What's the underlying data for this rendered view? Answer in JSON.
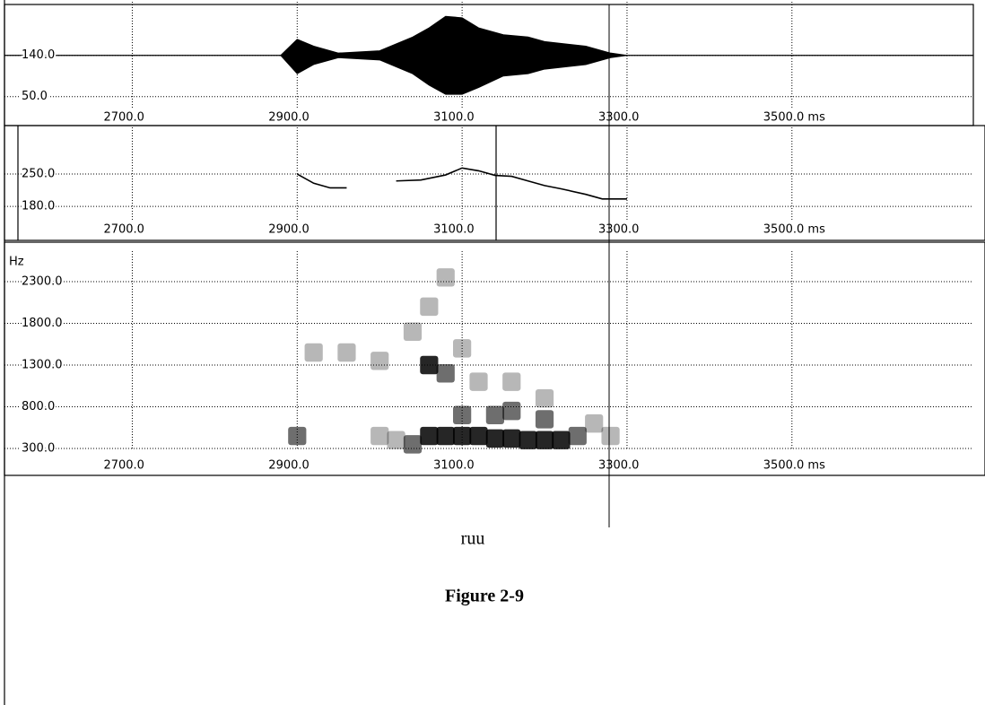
{
  "chart_data": [
    {
      "type": "waveform",
      "x": [
        2880,
        2900,
        2920,
        2950,
        3000,
        3040,
        3060,
        3080,
        3100,
        3120,
        3150,
        3180,
        3200,
        3250,
        3280,
        3300
      ],
      "upper": [
        140,
        175,
        160,
        145,
        150,
        180,
        200,
        225,
        222,
        200,
        185,
        180,
        170,
        160,
        145,
        140
      ],
      "lower": [
        140,
        100,
        120,
        135,
        130,
        100,
        75,
        55,
        55,
        70,
        95,
        100,
        110,
        120,
        135,
        140
      ],
      "color": "#000000",
      "xlim": [
        2545,
        3720
      ],
      "ylim": [
        26,
        251
      ],
      "xticks": [
        {
          "value": 2700,
          "label": "2700.0"
        },
        {
          "value": 2900,
          "label": "2900.0"
        },
        {
          "value": 3100,
          "label": "3100.0"
        },
        {
          "value": 3300,
          "label": "3300.0"
        },
        {
          "value": 3500,
          "label": "3500.0 ms"
        }
      ],
      "yticks": [
        {
          "value": 140,
          "label": "140.0"
        },
        {
          "value": 50,
          "label": "50.0"
        }
      ],
      "grid": true
    },
    {
      "type": "line",
      "x": [
        2900,
        2920,
        2940,
        2960,
        2990,
        3020,
        3050,
        3080,
        3100,
        3120,
        3140,
        3160,
        3180,
        3200,
        3220,
        3250,
        3270,
        3300
      ],
      "values": [
        250,
        230,
        220,
        220,
        null,
        235,
        237,
        248,
        263,
        257,
        247,
        245,
        235,
        225,
        218,
        206,
        196,
        196
      ],
      "color": "#000000",
      "xlim": [
        2545,
        3720
      ],
      "ylim": [
        151,
        351
      ],
      "xticks": [
        {
          "value": 2700,
          "label": "2700.0"
        },
        {
          "value": 2900,
          "label": "2900.0"
        },
        {
          "value": 3100,
          "label": "3100.0"
        },
        {
          "value": 3300,
          "label": "3300.0"
        },
        {
          "value": 3500,
          "label": "3500.0 ms"
        }
      ],
      "yticks": [
        {
          "value": 250,
          "label": "250.0"
        },
        {
          "value": 180,
          "label": "180.0"
        }
      ],
      "grid": true
    },
    {
      "type": "spectrogram",
      "y_label": "Hz",
      "x": [
        3060,
        3080,
        3100,
        3120,
        3140,
        3160,
        3180,
        3200,
        3220,
        3060,
        3080,
        2900,
        3040,
        3240,
        3140,
        3160,
        3200,
        3260,
        2920,
        2960,
        3000,
        3040,
        3060,
        3100,
        3120,
        3160,
        3200,
        3020,
        3000,
        3280,
        3100,
        3080
      ],
      "y": [
        450,
        450,
        450,
        450,
        420,
        420,
        400,
        400,
        400,
        1300,
        1200,
        450,
        350,
        450,
        700,
        750,
        650,
        600,
        1450,
        1450,
        1350,
        1700,
        2000,
        1500,
        1100,
        1100,
        900,
        400,
        450,
        450,
        700,
        2350
      ],
      "values": [
        3,
        3,
        3,
        3,
        3,
        3,
        3,
        3,
        3,
        3,
        2,
        2,
        2,
        2,
        2,
        2,
        2,
        1,
        1,
        1,
        1,
        1,
        1,
        1,
        1,
        1,
        1,
        1,
        1,
        1,
        2,
        1
      ],
      "color": "#000000",
      "xlim": [
        2545,
        3720
      ],
      "ylim": [
        300,
        2665
      ],
      "xticks": [
        {
          "value": 2700,
          "label": "2700.0"
        },
        {
          "value": 2900,
          "label": "2900.0"
        },
        {
          "value": 3100,
          "label": "3100.0"
        },
        {
          "value": 3300,
          "label": "3300.0"
        },
        {
          "value": 3500,
          "label": "3500.0 ms"
        }
      ],
      "yticks": [
        {
          "value": 2300,
          "label": "2300.0"
        },
        {
          "value": 1800,
          "label": "1800.0"
        },
        {
          "value": 1300,
          "label": "1300.0"
        },
        {
          "value": 800,
          "label": "800.0"
        },
        {
          "value": 300,
          "label": "300.0"
        }
      ],
      "grid": true
    }
  ],
  "word": "ruu",
  "caption": "Figure 2-9"
}
